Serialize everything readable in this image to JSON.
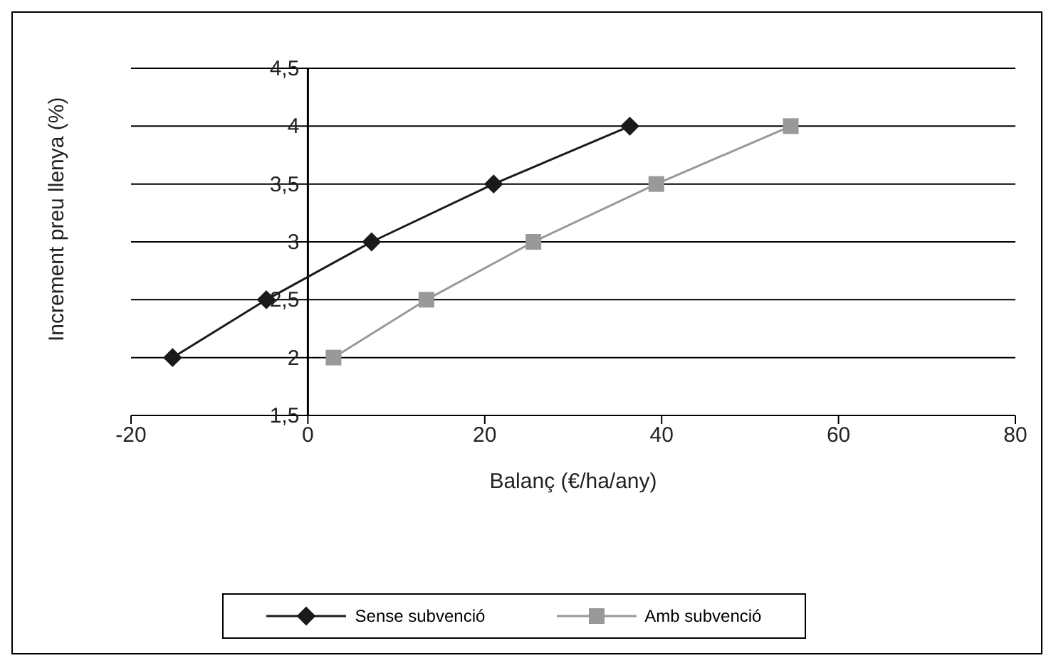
{
  "chart_data": {
    "type": "line",
    "xlabel": "Balanç (€/ha/any)",
    "ylabel": "Increment preu llenya (%)",
    "xlim": [
      -20,
      80
    ],
    "xticks": [
      -20,
      0,
      20,
      40,
      60,
      80
    ],
    "ylim": [
      1.5,
      4.5
    ],
    "yticks": [
      {
        "value": 1.5,
        "label": "1,5"
      },
      {
        "value": 2,
        "label": "2"
      },
      {
        "value": 2.5,
        "label": "2,5"
      },
      {
        "value": 3,
        "label": "3"
      },
      {
        "value": 3.5,
        "label": "3,5"
      },
      {
        "value": 4,
        "label": "4"
      },
      {
        "value": 4.5,
        "label": "4,5"
      }
    ],
    "grid": "y",
    "legend": "bottom",
    "series": [
      {
        "name": "Sense subvenció",
        "color": "#1a1a1a",
        "marker": "diamond",
        "x": [
          -15.3,
          -4.7,
          7.2,
          21,
          36.4
        ],
        "values": [
          2,
          2.5,
          3,
          3.5,
          4
        ]
      },
      {
        "name": "Amb subvenció",
        "color": "#999999",
        "marker": "square",
        "x": [
          2.9,
          13.4,
          25.5,
          39.4,
          54.6
        ],
        "values": [
          2,
          2.5,
          3,
          3.5,
          4
        ]
      }
    ]
  }
}
